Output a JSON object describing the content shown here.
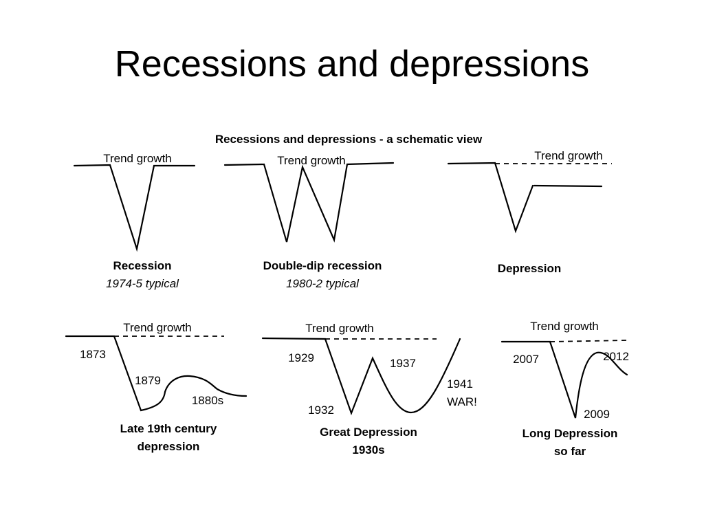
{
  "slide": {
    "title": "Recessions and depressions"
  },
  "diagram": {
    "title": "Recessions and depressions - a schematic view",
    "trend_label": "Trend growth",
    "panels": [
      {
        "id": "recession",
        "caption": "Recession",
        "subcaption": "1974-5 typical",
        "labels": []
      },
      {
        "id": "double-dip",
        "caption": "Double-dip recession",
        "subcaption": "1980-2 typical",
        "labels": []
      },
      {
        "id": "depression",
        "caption": "Depression",
        "subcaption": "",
        "labels": []
      },
      {
        "id": "late-19th",
        "caption_lines": [
          "Late 19th century",
          "depression"
        ],
        "labels": [
          "1873",
          "1879",
          "1880s"
        ]
      },
      {
        "id": "great-depression",
        "caption_lines": [
          "Great Depression",
          "1930s"
        ],
        "labels": [
          "1929",
          "1932",
          "1937",
          "1941",
          "WAR!"
        ]
      },
      {
        "id": "long-depression",
        "caption_lines": [
          "Long Depression",
          "so far"
        ],
        "labels": [
          "2007",
          "2009",
          "2012"
        ]
      }
    ]
  }
}
